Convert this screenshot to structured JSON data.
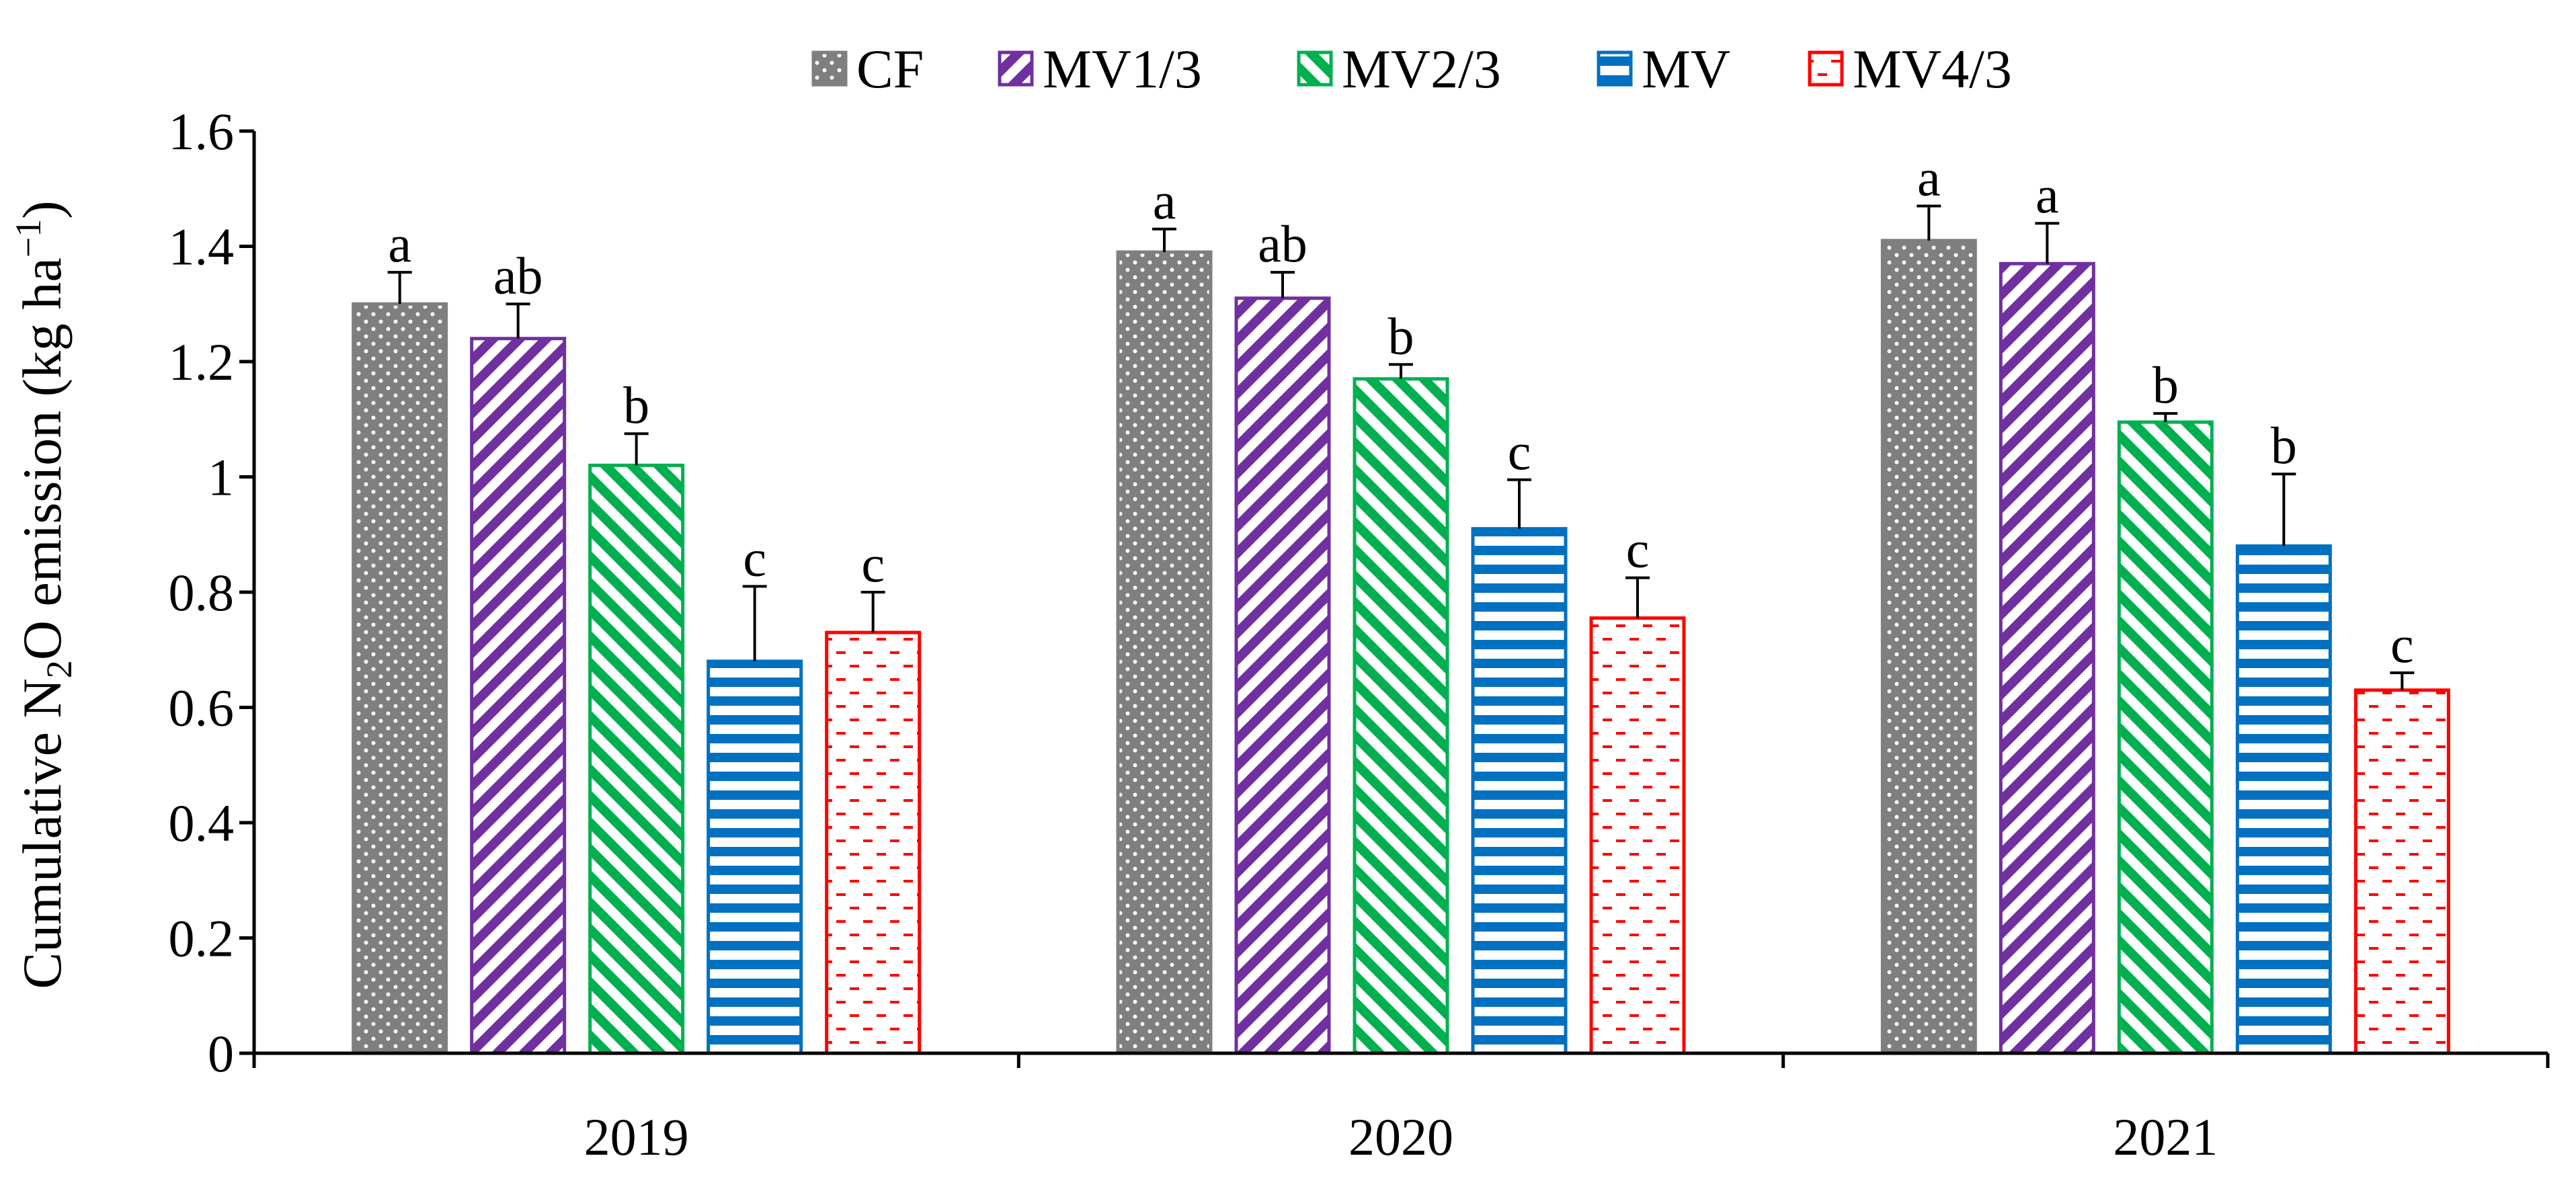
{
  "chart_data": {
    "type": "bar",
    "categories": [
      "2019",
      "2020",
      "2021"
    ],
    "ylabel": {
      "pre": "Cumulative N",
      "sub": "2",
      "post": "O emission (kg ha",
      "sup": "−1",
      "end": ")"
    },
    "ylim": [
      0,
      1.6
    ],
    "yticks": [
      "0",
      "0.2",
      "0.4",
      "0.6",
      "0.8",
      "1",
      "1.2",
      "1.4",
      "1.6"
    ],
    "grid": false,
    "legend_position": "top",
    "series": [
      {
        "name": "CF",
        "color": "#7f7f7f",
        "pattern": "dots",
        "values": [
          1.3,
          1.39,
          1.41
        ],
        "errors": [
          0.055,
          0.04,
          0.06
        ],
        "letters": [
          "a",
          "a",
          "a"
        ]
      },
      {
        "name": "MV1/3",
        "color": "#7030a0",
        "pattern": "diag-down",
        "values": [
          1.24,
          1.31,
          1.37
        ],
        "errors": [
          0.06,
          0.045,
          0.07
        ],
        "letters": [
          "ab",
          "ab",
          "a"
        ]
      },
      {
        "name": "MV2/3",
        "color": "#00b050",
        "pattern": "diag-up",
        "values": [
          1.02,
          1.17,
          1.095
        ],
        "errors": [
          0.055,
          0.025,
          0.015
        ],
        "letters": [
          "b",
          "b",
          "b"
        ]
      },
      {
        "name": "MV",
        "color": "#0070c0",
        "pattern": "hlines",
        "values": [
          0.68,
          0.91,
          0.88
        ],
        "errors": [
          0.13,
          0.085,
          0.125
        ],
        "letters": [
          "c",
          "c",
          "b"
        ]
      },
      {
        "name": "MV4/3",
        "color": "#ff0000",
        "pattern": "dashes",
        "values": [
          0.73,
          0.755,
          0.63
        ],
        "errors": [
          0.07,
          0.07,
          0.03
        ],
        "letters": [
          "c",
          "c",
          "c"
        ]
      }
    ]
  }
}
